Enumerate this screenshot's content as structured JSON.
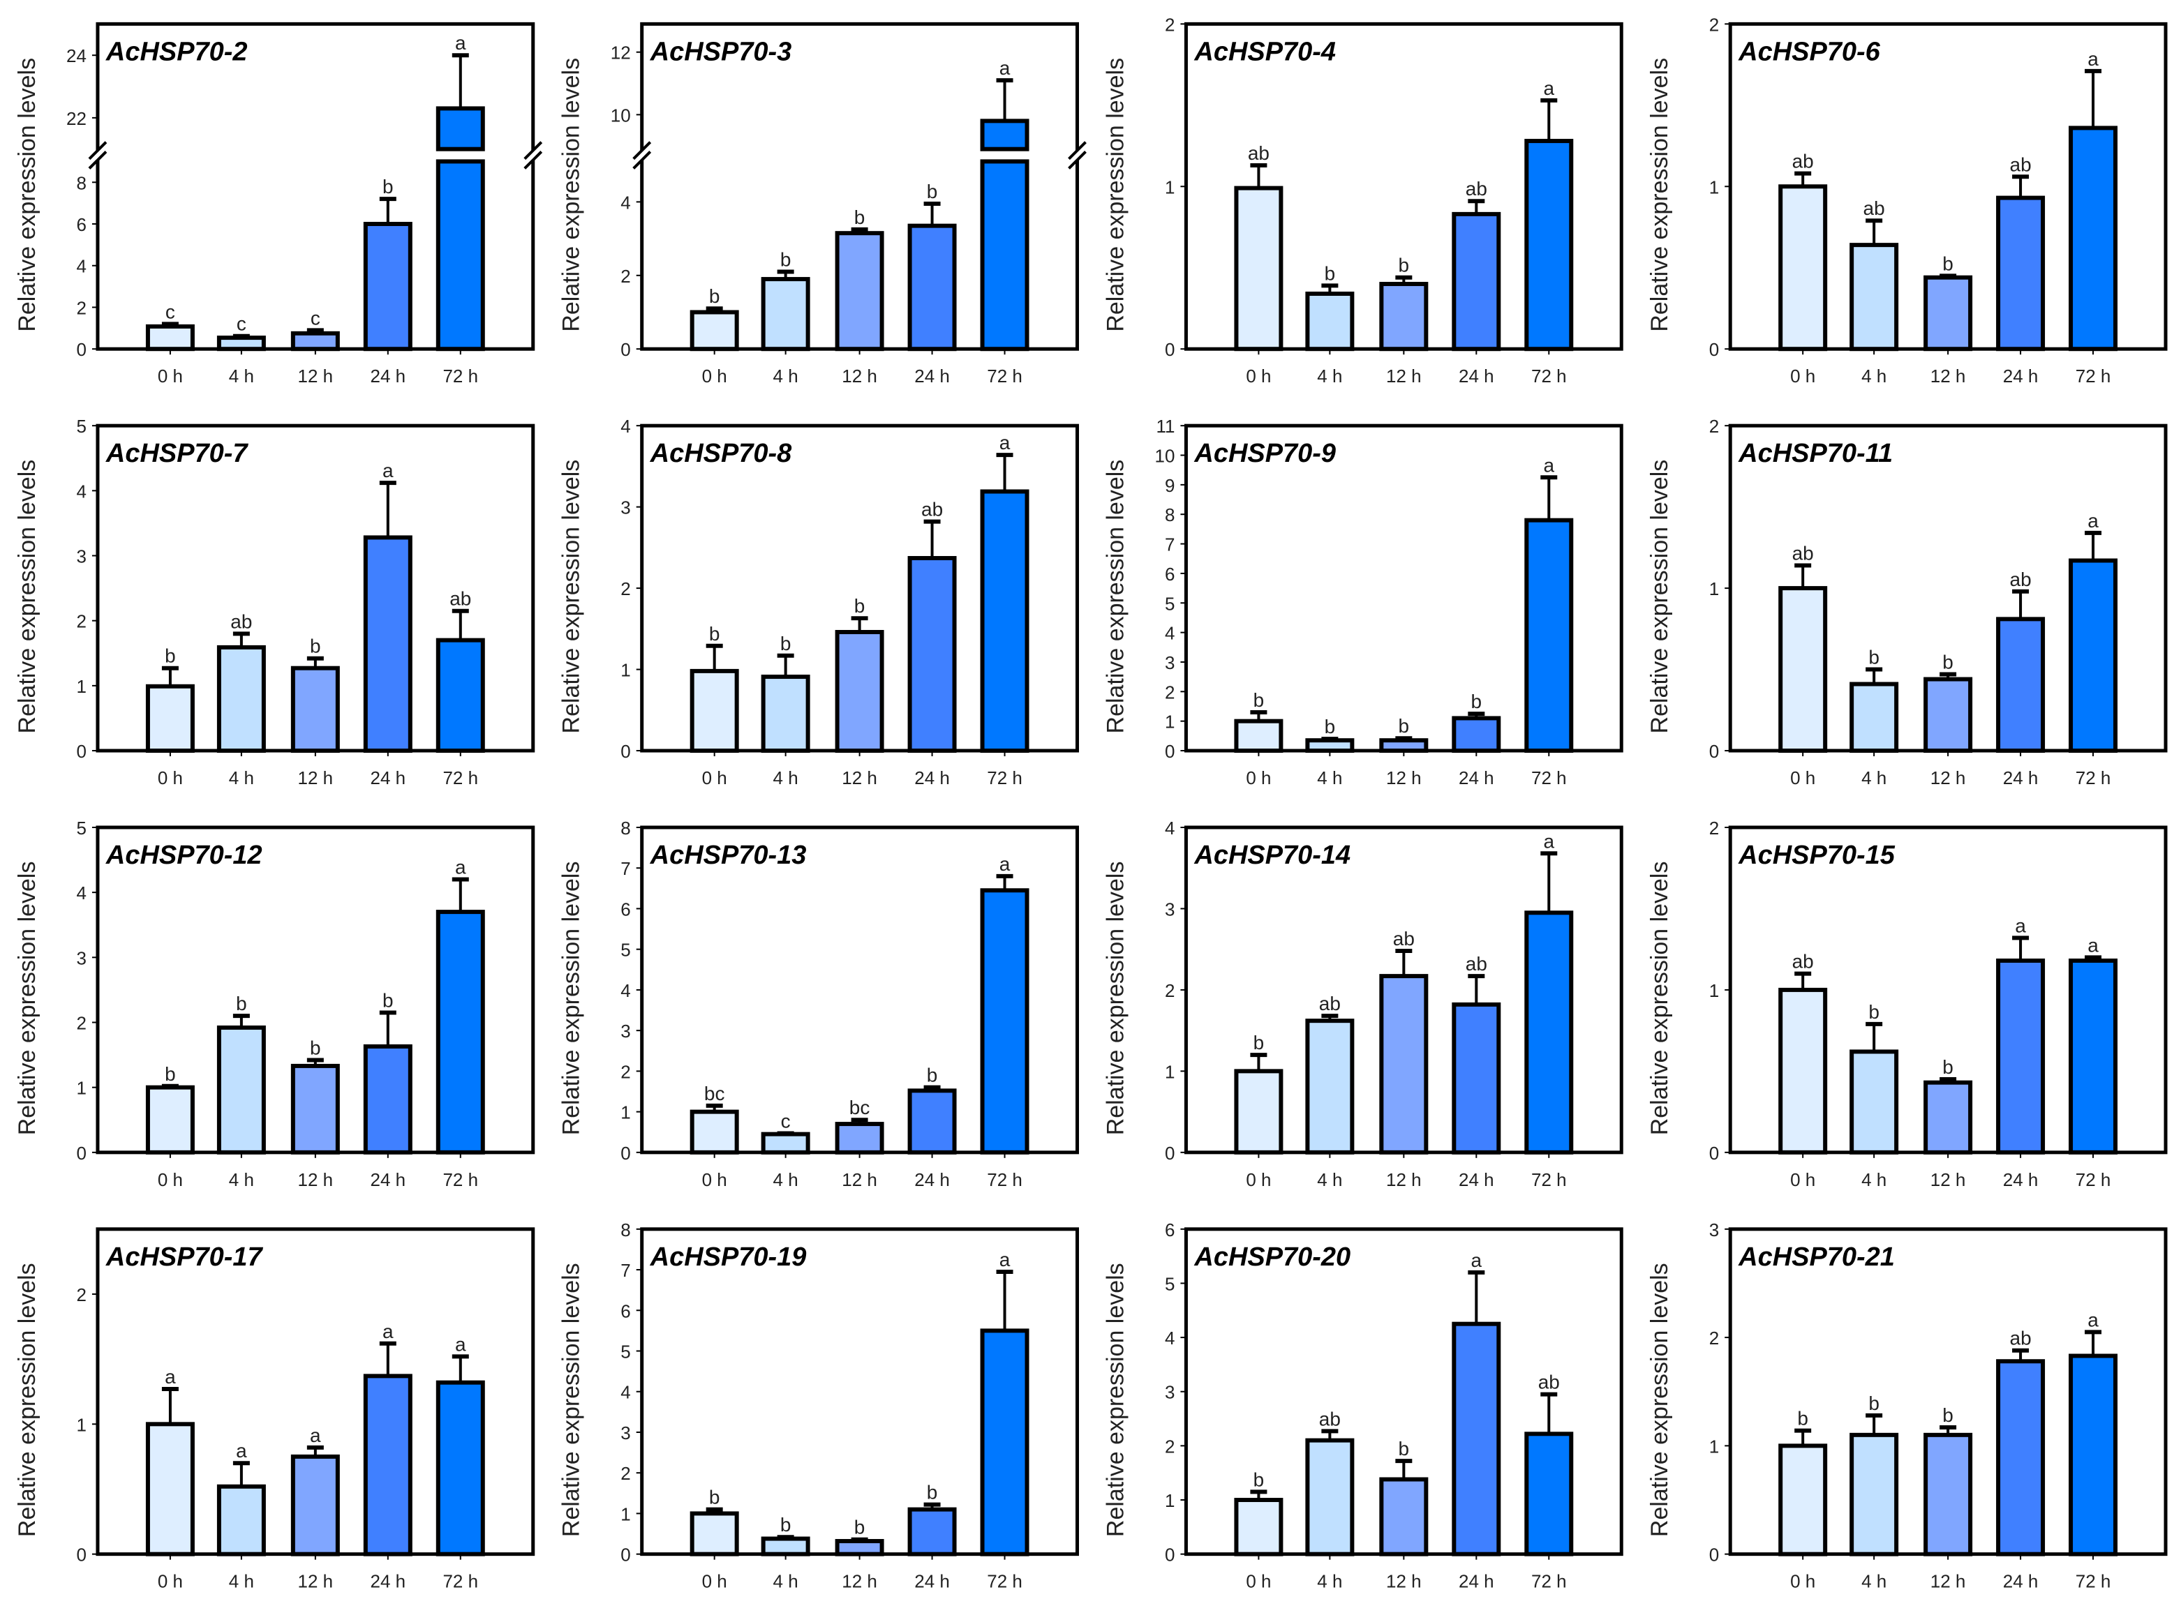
{
  "chart_data": {
    "type": "bar",
    "ylabel": "Relative expression levels",
    "categories": [
      "0 h",
      "4 h",
      "12 h",
      "24 h",
      "72 h"
    ],
    "bar_colors": [
      "#deeeff",
      "#c0e0ff",
      "#80a6ff",
      "#4080ff",
      "#0078ff"
    ],
    "panels": [
      {
        "title": "AcHSP70-2",
        "ylim": [
          0,
          25
        ],
        "ticks": [
          0,
          2,
          4,
          6,
          8,
          22,
          24
        ],
        "axis_break": {
          "lower": [
            0,
            9
          ],
          "upper": [
            21,
            25
          ]
        },
        "values": [
          1.08,
          0.54,
          0.75,
          6.0,
          22.3
        ],
        "err_top": [
          1.2,
          0.62,
          0.9,
          7.2,
          24.0
        ],
        "letters": [
          "c",
          "c",
          "c",
          "b",
          "a"
        ]
      },
      {
        "title": "AcHSP70-3",
        "ylim": [
          0,
          12.9
        ],
        "ticks": [
          0,
          2,
          4,
          10,
          12
        ],
        "axis_break": {
          "lower": [
            0,
            5.1
          ],
          "upper": [
            8.9,
            12.9
          ]
        },
        "values": [
          1.0,
          1.9,
          3.15,
          3.35,
          9.8
        ],
        "err_top": [
          1.1,
          2.1,
          3.25,
          3.95,
          11.1
        ],
        "letters": [
          "b",
          "b",
          "b",
          "b",
          "a"
        ]
      },
      {
        "title": "AcHSP70-4",
        "ylim": [
          0,
          2
        ],
        "ticks": [
          0,
          1,
          2
        ],
        "values": [
          0.99,
          0.34,
          0.4,
          0.83,
          1.28
        ],
        "err_top": [
          1.13,
          0.39,
          0.44,
          0.91,
          1.53
        ],
        "letters": [
          "ab",
          "b",
          "b",
          "ab",
          "a"
        ]
      },
      {
        "title": "AcHSP70-6",
        "ylim": [
          0,
          2
        ],
        "ticks": [
          0,
          1,
          2
        ],
        "values": [
          1.0,
          0.64,
          0.44,
          0.93,
          1.36
        ],
        "err_top": [
          1.08,
          0.79,
          0.45,
          1.06,
          1.71
        ],
        "letters": [
          "ab",
          "ab",
          "b",
          "ab",
          "a"
        ]
      },
      {
        "title": "AcHSP70-7",
        "ylim": [
          0,
          5
        ],
        "ticks": [
          0,
          1,
          2,
          3,
          4,
          5
        ],
        "values": [
          0.99,
          1.59,
          1.27,
          3.28,
          1.7
        ],
        "err_top": [
          1.27,
          1.8,
          1.42,
          4.12,
          2.15
        ],
        "letters": [
          "b",
          "ab",
          "b",
          "a",
          "ab"
        ]
      },
      {
        "title": "AcHSP70-8",
        "ylim": [
          0,
          4
        ],
        "ticks": [
          0,
          1,
          2,
          3,
          4
        ],
        "values": [
          0.98,
          0.91,
          1.46,
          2.37,
          3.19
        ],
        "err_top": [
          1.29,
          1.17,
          1.63,
          2.82,
          3.64
        ],
        "letters": [
          "b",
          "b",
          "b",
          "ab",
          "a"
        ]
      },
      {
        "title": "AcHSP70-9",
        "ylim": [
          0,
          11
        ],
        "ticks": [
          0,
          1,
          2,
          3,
          4,
          5,
          6,
          7,
          8,
          9,
          10,
          11
        ],
        "values": [
          1.0,
          0.35,
          0.35,
          1.1,
          7.8
        ],
        "err_top": [
          1.3,
          0.4,
          0.42,
          1.25,
          9.25
        ],
        "letters": [
          "b",
          "b",
          "b",
          "b",
          "a"
        ]
      },
      {
        "title": "AcHSP70-11",
        "ylim": [
          0,
          2
        ],
        "ticks": [
          0,
          1,
          2
        ],
        "values": [
          1.0,
          0.41,
          0.44,
          0.81,
          1.17
        ],
        "err_top": [
          1.14,
          0.5,
          0.47,
          0.98,
          1.34
        ],
        "letters": [
          "ab",
          "b",
          "b",
          "ab",
          "a"
        ]
      },
      {
        "title": "AcHSP70-12",
        "ylim": [
          0,
          5
        ],
        "ticks": [
          0,
          1,
          2,
          3,
          4,
          5
        ],
        "values": [
          1.0,
          1.92,
          1.33,
          1.63,
          3.7
        ],
        "err_top": [
          1.02,
          2.1,
          1.42,
          2.15,
          4.2
        ],
        "letters": [
          "b",
          "b",
          "b",
          "b",
          "a"
        ]
      },
      {
        "title": "AcHSP70-13",
        "ylim": [
          0,
          8
        ],
        "ticks": [
          0,
          1,
          2,
          3,
          4,
          5,
          6,
          7,
          8
        ],
        "values": [
          1.0,
          0.45,
          0.7,
          1.52,
          6.45
        ],
        "err_top": [
          1.15,
          0.47,
          0.8,
          1.6,
          6.8
        ],
        "letters": [
          "bc",
          "c",
          "bc",
          "b",
          "a"
        ]
      },
      {
        "title": "AcHSP70-14",
        "ylim": [
          0,
          4
        ],
        "ticks": [
          0,
          1,
          2,
          3,
          4
        ],
        "values": [
          1.0,
          1.62,
          2.17,
          1.82,
          2.95
        ],
        "err_top": [
          1.2,
          1.68,
          2.48,
          2.17,
          3.68
        ],
        "letters": [
          "b",
          "ab",
          "ab",
          "ab",
          "a"
        ]
      },
      {
        "title": "AcHSP70-15",
        "ylim": [
          0,
          2
        ],
        "ticks": [
          0,
          1,
          2
        ],
        "values": [
          1.0,
          0.62,
          0.43,
          1.18,
          1.18
        ],
        "err_top": [
          1.1,
          0.79,
          0.45,
          1.32,
          1.2
        ],
        "letters": [
          "ab",
          "b",
          "b",
          "a",
          "a"
        ]
      },
      {
        "title": "AcHSP70-17",
        "ylim": [
          0,
          2.5
        ],
        "ticks": [
          0,
          1,
          2
        ],
        "values": [
          1.0,
          0.52,
          0.75,
          1.37,
          1.32
        ],
        "err_top": [
          1.27,
          0.7,
          0.82,
          1.62,
          1.52
        ],
        "letters": [
          "a",
          "a",
          "a",
          "a",
          "a"
        ]
      },
      {
        "title": "AcHSP70-19",
        "ylim": [
          0,
          8
        ],
        "ticks": [
          0,
          1,
          2,
          3,
          4,
          5,
          6,
          7,
          8
        ],
        "values": [
          1.0,
          0.38,
          0.32,
          1.1,
          5.5
        ],
        "err_top": [
          1.1,
          0.42,
          0.36,
          1.22,
          6.95
        ],
        "letters": [
          "b",
          "b",
          "b",
          "b",
          "a"
        ]
      },
      {
        "title": "AcHSP70-20",
        "ylim": [
          0,
          6
        ],
        "ticks": [
          0,
          1,
          2,
          3,
          4,
          5,
          6
        ],
        "values": [
          1.0,
          2.1,
          1.38,
          4.25,
          2.22
        ],
        "err_top": [
          1.15,
          2.27,
          1.72,
          5.2,
          2.95
        ],
        "letters": [
          "b",
          "ab",
          "b",
          "a",
          "ab"
        ]
      },
      {
        "title": "AcHSP70-21",
        "ylim": [
          0,
          3
        ],
        "ticks": [
          0,
          1,
          2,
          3
        ],
        "values": [
          1.0,
          1.1,
          1.1,
          1.78,
          1.83
        ],
        "err_top": [
          1.14,
          1.28,
          1.17,
          1.88,
          2.05
        ],
        "letters": [
          "b",
          "b",
          "b",
          "ab",
          "a"
        ]
      }
    ]
  }
}
